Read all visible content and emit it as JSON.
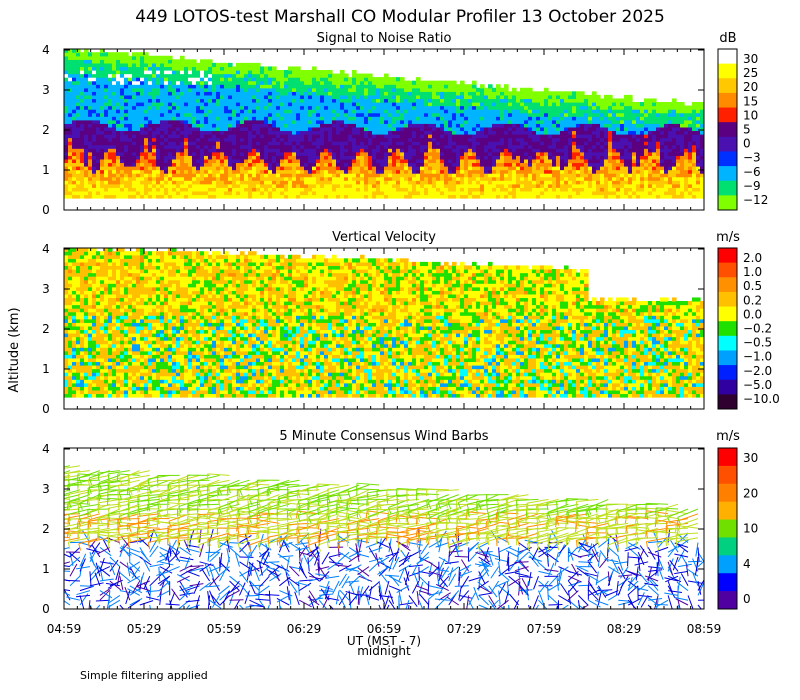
{
  "title": "449 LOTOS-test Marshall CO Modular Profiler 13 October 2025",
  "y_axis_label": "Altitude (km)",
  "x_axis_label": "UT  (MST - 7)",
  "midnight_label": "midnight",
  "footer_note": "Simple filtering applied",
  "x_ticks": [
    "04:59",
    "05:29",
    "05:59",
    "06:29",
    "06:59",
    "07:29",
    "07:59",
    "08:29",
    "08:59"
  ],
  "y_ticks": [
    "0",
    "1",
    "2",
    "3",
    "4"
  ],
  "chart_data": [
    {
      "type": "heatmap",
      "title": "Signal to Noise Ratio",
      "unit": "dB",
      "xlim_utc_hours": [
        4.983,
        8.983
      ],
      "ylim_km": [
        0,
        4
      ],
      "colorbar_labels": [
        "30",
        "25",
        "20",
        "15",
        "10",
        "5",
        "0",
        "−3",
        "−6",
        "−9",
        "−12"
      ],
      "colorbar_values": [
        30,
        25,
        20,
        15,
        10,
        5,
        0,
        -3,
        -6,
        -9,
        -12
      ],
      "colorbar_colors": [
        "#ffffff",
        "#ffff00",
        "#ffc800",
        "#ff8c00",
        "#ff2000",
        "#5a0080",
        "#4a10b0",
        "#0030ff",
        "#00b4ff",
        "#00e070",
        "#80ff00"
      ],
      "data_top_km_start": 4.0,
      "data_top_km_end": 2.6,
      "layers": [
        {
          "description": "low altitude",
          "km_range": [
            0.3,
            1.3
          ],
          "approx_db": 15
        },
        {
          "description": "mid altitude",
          "km_range": [
            1.3,
            2.2
          ],
          "approx_db": 3
        },
        {
          "description": "upper altitude",
          "km_range": [
            2.2,
            4.0
          ],
          "approx_db": -8
        }
      ]
    },
    {
      "type": "heatmap",
      "title": "Vertical Velocity",
      "unit": "m/s",
      "xlim_utc_hours": [
        4.983,
        8.983
      ],
      "ylim_km": [
        0,
        4
      ],
      "colorbar_labels": [
        "2.0",
        "1.0",
        "0.5",
        "0.2",
        "0.0",
        "−0.2",
        "−0.5",
        "−1.0",
        "−2.0",
        "−5.0",
        "−10.0"
      ],
      "colorbar_values": [
        2.0,
        1.0,
        0.5,
        0.2,
        0.0,
        -0.2,
        -0.5,
        -1.0,
        -2.0,
        -5.0,
        -10.0
      ],
      "colorbar_colors": [
        "#ff0000",
        "#ff5000",
        "#ff9000",
        "#ffc000",
        "#ffff00",
        "#20e000",
        "#00ffff",
        "#00a0ff",
        "#0020ff",
        "#3000a0",
        "#300030"
      ],
      "data_top_km_start": 4.0,
      "data_top_km_end": 2.7
    },
    {
      "type": "scatter",
      "title": "5 Minute Consensus Wind Barbs",
      "unit": "m/s",
      "xlim_utc_hours": [
        4.983,
        8.983
      ],
      "ylim_km": [
        0,
        4
      ],
      "colorbar_labels": [
        "30",
        "20",
        "10",
        "4",
        "0"
      ],
      "colorbar_values": [
        30,
        20,
        10,
        4,
        0
      ],
      "colorbar_colors": [
        "#ff0000",
        "#ff5000",
        "#ff8000",
        "#ffb000",
        "#70e000",
        "#00d080",
        "#00a0ff",
        "#0000ff",
        "#5000a0"
      ],
      "speed_by_layer": [
        {
          "km_range": [
            0.0,
            1.7
          ],
          "approx_speed_ms": 3
        },
        {
          "km_range": [
            1.7,
            2.5
          ],
          "approx_speed_ms": 15
        },
        {
          "km_range": [
            2.5,
            3.7
          ],
          "approx_speed_ms": 12
        }
      ]
    }
  ]
}
